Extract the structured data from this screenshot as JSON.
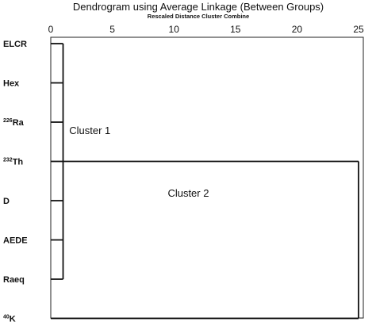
{
  "chart_data": {
    "type": "dendrogram",
    "title": "Dendrogram using Average Linkage (Between Groups)",
    "subtitle": "Rescaled Distance Cluster Combine",
    "xlim": [
      0,
      25
    ],
    "x_ticks": [
      0,
      5,
      10,
      15,
      20,
      25
    ],
    "leaves": [
      {
        "sup": "",
        "base": "ELCR"
      },
      {
        "sup": "",
        "base": "Hex"
      },
      {
        "sup": "226",
        "base": "Ra"
      },
      {
        "sup": "232",
        "base": "Th"
      },
      {
        "sup": "",
        "base": "D"
      },
      {
        "sup": "",
        "base": "AEDE"
      },
      {
        "sup": "",
        "base": "Raeq"
      },
      {
        "sup": "40",
        "base": "K"
      }
    ],
    "merges": [
      {
        "members": [
          "ELCR",
          "Hex",
          "226Ra",
          "232Th",
          "D",
          "AEDE",
          "Raeq"
        ],
        "distance": 1
      },
      {
        "members": [
          "cluster-1",
          "40K"
        ],
        "distance": 25
      }
    ],
    "annotations": [
      {
        "text": "Cluster 1",
        "x": 1.5,
        "leaf_pos": 2.2
      },
      {
        "text": "Cluster 2",
        "x": 9.5,
        "leaf_pos": 3.8
      }
    ]
  }
}
